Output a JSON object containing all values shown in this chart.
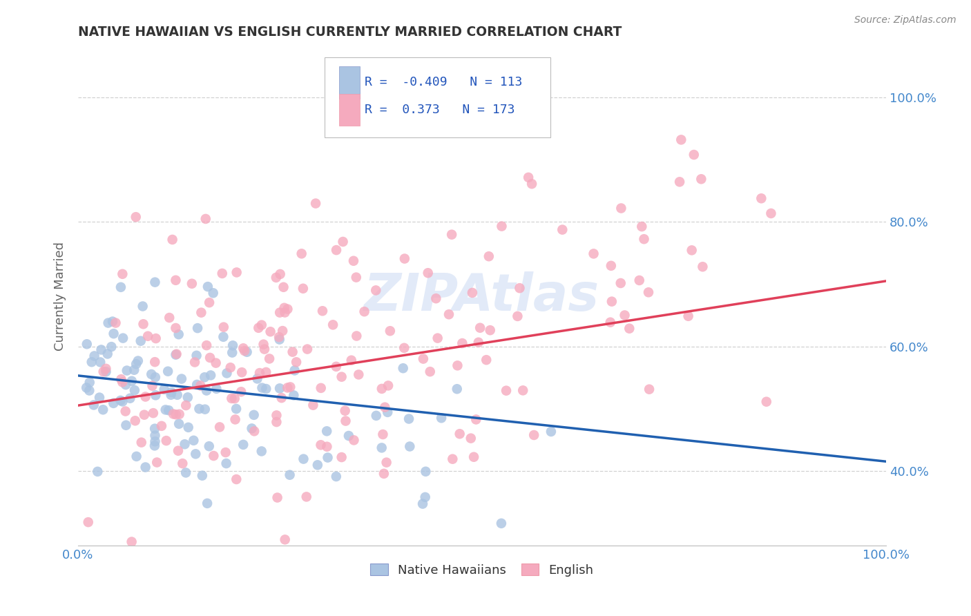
{
  "title": "NATIVE HAWAIIAN VS ENGLISH CURRENTLY MARRIED CORRELATION CHART",
  "source": "Source: ZipAtlas.com",
  "ylabel": "Currently Married",
  "watermark": "ZIPAtlas",
  "legend_blue_label": "Native Hawaiians",
  "legend_pink_label": "English",
  "blue_color": "#aac4e2",
  "pink_color": "#f5aabe",
  "blue_line_color": "#2060b0",
  "pink_line_color": "#e0405a",
  "legend_text_color": "#2255bb",
  "background_color": "#ffffff",
  "grid_color": "#cccccc",
  "title_color": "#333333",
  "blue_R": -0.409,
  "blue_N": 113,
  "pink_R": 0.373,
  "pink_N": 173,
  "xlim": [
    0.0,
    1.0
  ],
  "ylim": [
    0.28,
    1.08
  ],
  "yticks": [
    0.4,
    0.6,
    0.8,
    1.0
  ],
  "ytick_labels": [
    "40.0%",
    "60.0%",
    "80.0%",
    "100.0%"
  ],
  "xtick_left": "0.0%",
  "xtick_right": "100.0%",
  "blue_trend_x0": 0.0,
  "blue_trend_y0": 0.553,
  "blue_trend_x1": 1.0,
  "blue_trend_y1": 0.415,
  "pink_trend_x0": 0.0,
  "pink_trend_y0": 0.505,
  "pink_trend_x1": 1.0,
  "pink_trend_y1": 0.705,
  "seed_blue": 77,
  "seed_pink": 55
}
